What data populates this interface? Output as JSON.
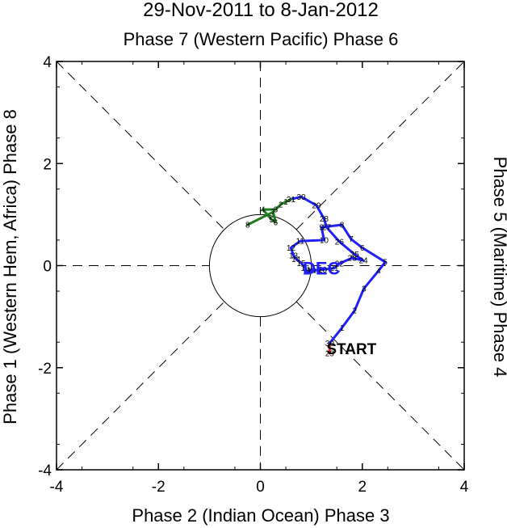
{
  "chart_data": {
    "type": "line",
    "title": "29-Nov-2011 to 8-Jan-2012",
    "top_label": "Phase 7 (Western Pacific) Phase 6",
    "xlabel": "Phase 2 (Indian Ocean) Phase 3",
    "ylabel": "Phase 1 (Western Hem, Africa) Phase 8",
    "right_label": "Phase 5 (Maritime) Phase 4",
    "xlim": [
      -4,
      4
    ],
    "ylim": [
      -4,
      4
    ],
    "xticks": [
      -4,
      -2,
      0,
      2,
      4
    ],
    "yticks": [
      -4,
      -2,
      0,
      2,
      4
    ],
    "xtick_labels": [
      "-4",
      "-2",
      "0",
      "2",
      "4"
    ],
    "ytick_labels": [
      "-4",
      "-2",
      "0",
      "2",
      "4"
    ],
    "start_label": "START",
    "month_labels": [
      {
        "text": "DEC",
        "x": 1.2,
        "y": -0.05,
        "color": "#1f1fff"
      }
    ],
    "series": [
      {
        "name": "November",
        "color": "#ff1f1f",
        "points": [
          {
            "day": "29",
            "x": 1.36,
            "y": -1.72
          },
          {
            "day": "30",
            "x": 1.36,
            "y": -1.52
          }
        ]
      },
      {
        "name": "December",
        "color": "#1f1fff",
        "points": [
          {
            "day": "1",
            "x": 1.6,
            "y": -1.22
          },
          {
            "day": "2",
            "x": 1.85,
            "y": -0.88
          },
          {
            "day": "3",
            "x": 2.03,
            "y": -0.45
          },
          {
            "day": "4",
            "x": 2.32,
            "y": -0.1
          },
          {
            "day": "5",
            "x": 2.45,
            "y": 0.07
          },
          {
            "day": "6",
            "x": 2.0,
            "y": 0.35
          },
          {
            "day": "7",
            "x": 1.78,
            "y": 0.52
          },
          {
            "day": "8",
            "x": 1.6,
            "y": 0.8
          },
          {
            "day": "9",
            "x": 1.2,
            "y": 0.75
          },
          {
            "day": "10",
            "x": 1.25,
            "y": 0.5
          },
          {
            "day": "11",
            "x": 0.78,
            "y": 0.48
          },
          {
            "day": "12",
            "x": 0.6,
            "y": 0.35
          },
          {
            "day": "13",
            "x": 0.65,
            "y": 0.2
          },
          {
            "day": "14",
            "x": 0.7,
            "y": 0.13
          },
          {
            "day": "15",
            "x": 0.8,
            "y": 0.05
          },
          {
            "day": "16",
            "x": 0.88,
            "y": -0.05
          },
          {
            "day": "17",
            "x": 0.92,
            "y": -0.12
          },
          {
            "day": "18",
            "x": 1.0,
            "y": -0.09
          },
          {
            "day": "19",
            "x": 1.1,
            "y": -0.09
          },
          {
            "day": "20",
            "x": 1.22,
            "y": -0.08
          },
          {
            "day": "21",
            "x": 1.45,
            "y": -0.05
          },
          {
            "day": "22",
            "x": 1.55,
            "y": 0.04
          },
          {
            "day": "23",
            "x": 1.8,
            "y": 0.15
          },
          {
            "day": "24",
            "x": 2.02,
            "y": 0.1
          },
          {
            "day": "25",
            "x": 1.85,
            "y": 0.22
          },
          {
            "day": "26",
            "x": 1.55,
            "y": 0.47
          },
          {
            "day": "27",
            "x": 1.3,
            "y": 0.75
          },
          {
            "day": "28",
            "x": 1.25,
            "y": 0.92
          },
          {
            "day": "29",
            "x": 1.1,
            "y": 1.18
          },
          {
            "day": "30",
            "x": 0.8,
            "y": 1.35
          },
          {
            "day": "31",
            "x": 0.6,
            "y": 1.3
          }
        ]
      },
      {
        "name": "January",
        "color": "#1e7e1e",
        "points": [
          {
            "day": "1",
            "x": 0.5,
            "y": 1.25
          },
          {
            "day": "2",
            "x": 0.4,
            "y": 1.2
          },
          {
            "day": "3",
            "x": 0.3,
            "y": 1.1
          },
          {
            "day": "4",
            "x": 0.05,
            "y": 1.1
          },
          {
            "day": "5",
            "x": 0.22,
            "y": 0.9
          },
          {
            "day": "6",
            "x": 0.3,
            "y": 0.85
          },
          {
            "day": "7",
            "x": 0.25,
            "y": 1.05
          },
          {
            "day": "8",
            "x": -0.25,
            "y": 0.8
          }
        ]
      }
    ]
  }
}
